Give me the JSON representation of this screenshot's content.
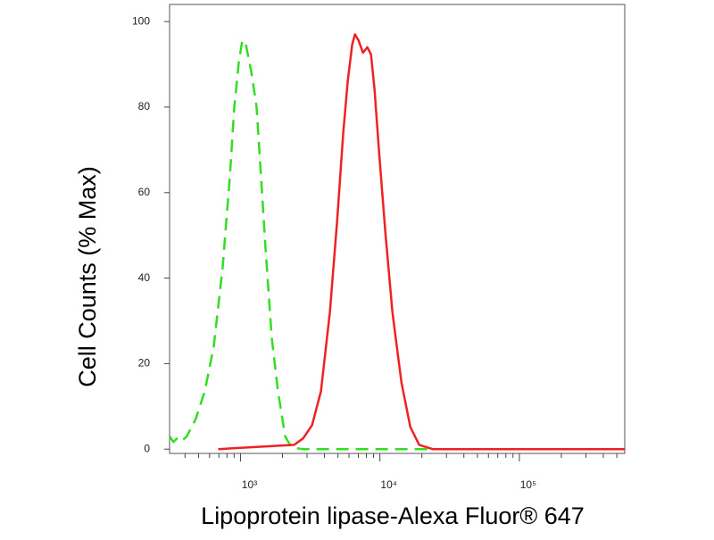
{
  "chart_data": {
    "type": "line",
    "xlabel": "Lipoprotein lipase-Alexa Fluor® 647",
    "ylabel": "Cell Counts (% Max)",
    "xscale": "log",
    "xlim": [
      310,
      570000
    ],
    "ylim": [
      -1,
      104
    ],
    "xticks": [
      {
        "value": 1000,
        "label": "10³"
      },
      {
        "value": 10000,
        "label": "10⁴"
      },
      {
        "value": 100000,
        "label": "10⁵"
      }
    ],
    "xminorticks": [
      400,
      500,
      600,
      700,
      800,
      900,
      2000,
      3000,
      4000,
      5000,
      6000,
      7000,
      8000,
      9000,
      20000,
      30000,
      40000,
      50000,
      60000,
      70000,
      80000,
      90000,
      200000,
      300000,
      400000,
      500000
    ],
    "yticks": [
      0,
      20,
      40,
      60,
      80,
      100
    ],
    "series": [
      {
        "color": "#33dd22",
        "dash": true,
        "x": [
          310,
          330,
          356,
          383,
          412,
          477,
          554,
          643,
          745,
          838,
          902,
          971,
          1030,
          1093,
          1194,
          1304,
          1404,
          1511,
          1675,
          1858,
          2092,
          2319,
          2810,
          570000
        ],
        "values": [
          3,
          1.7,
          2.7,
          2,
          3,
          7,
          13.5,
          24,
          42.6,
          63.6,
          80,
          90.4,
          95.6,
          94.6,
          88.4,
          80,
          63.6,
          47,
          26,
          13.5,
          3,
          0.4,
          0,
          0
        ]
      },
      {
        "color": "#ee2222",
        "dash": false,
        "x": [
          692,
          2425,
          2810,
          3258,
          3775,
          4374,
          4921,
          5458,
          5875,
          6324,
          6620,
          7020,
          7555,
          8130,
          8630,
          9160,
          9860,
          10920,
          12300,
          14260,
          16520,
          19140,
          23900,
          570000
        ],
        "values": [
          0,
          1,
          2.5,
          5.6,
          13.5,
          32,
          53,
          74,
          86,
          94.6,
          97,
          95.6,
          92.7,
          94,
          92.3,
          84,
          69.6,
          50.9,
          32,
          15.6,
          5.2,
          1,
          0,
          0
        ]
      }
    ]
  }
}
